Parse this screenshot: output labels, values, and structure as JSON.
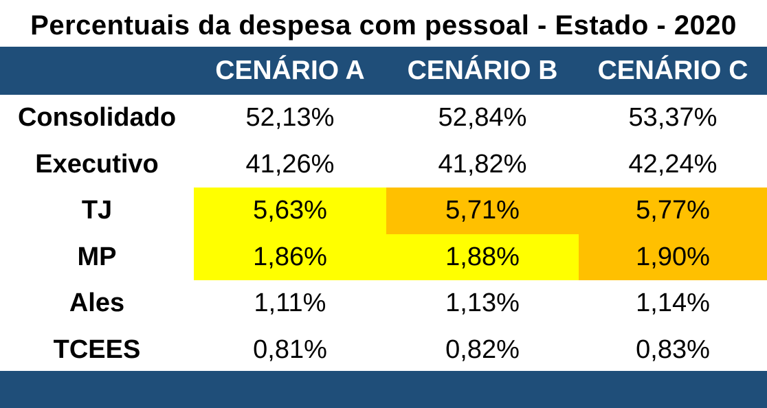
{
  "colors": {
    "header_band": "#1f4e79",
    "highlight_yellow": "#ffff00",
    "highlight_orange": "#ffc000"
  },
  "chart_data": {
    "type": "table",
    "title": "Percentuais da despesa com pessoal - Estado - 2020",
    "columns": [
      "CENÁRIO A",
      "CENÁRIO B",
      "CENÁRIO C"
    ],
    "rows": [
      {
        "label": "Consolidado",
        "values": [
          "52,13%",
          "52,84%",
          "53,37%"
        ],
        "highlights": [
          "",
          "",
          ""
        ]
      },
      {
        "label": "Executivo",
        "values": [
          "41,26%",
          "41,82%",
          "42,24%"
        ],
        "highlights": [
          "",
          "",
          ""
        ]
      },
      {
        "label": "TJ",
        "values": [
          "5,63%",
          "5,71%",
          "5,77%"
        ],
        "highlights": [
          "yellow",
          "orange",
          "orange"
        ]
      },
      {
        "label": "MP",
        "values": [
          "1,86%",
          "1,88%",
          "1,90%"
        ],
        "highlights": [
          "yellow",
          "yellow",
          "orange"
        ]
      },
      {
        "label": "Ales",
        "values": [
          "1,11%",
          "1,13%",
          "1,14%"
        ],
        "highlights": [
          "",
          "",
          ""
        ]
      },
      {
        "label": "TCEES",
        "values": [
          "0,81%",
          "0,82%",
          "0,83%"
        ],
        "highlights": [
          "",
          "",
          ""
        ]
      }
    ]
  }
}
